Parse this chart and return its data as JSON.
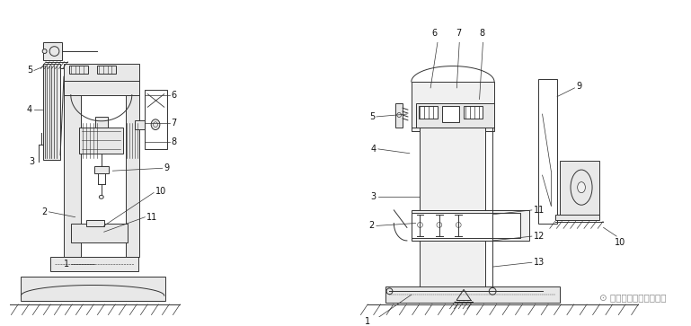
{
  "background_color": "#ffffff",
  "watermark_text": "五金冲压模具设计教学",
  "fig_width": 7.69,
  "fig_height": 3.63,
  "dpi": 100,
  "line_color": "#333333",
  "lw": 0.7,
  "lw2": 1.0
}
